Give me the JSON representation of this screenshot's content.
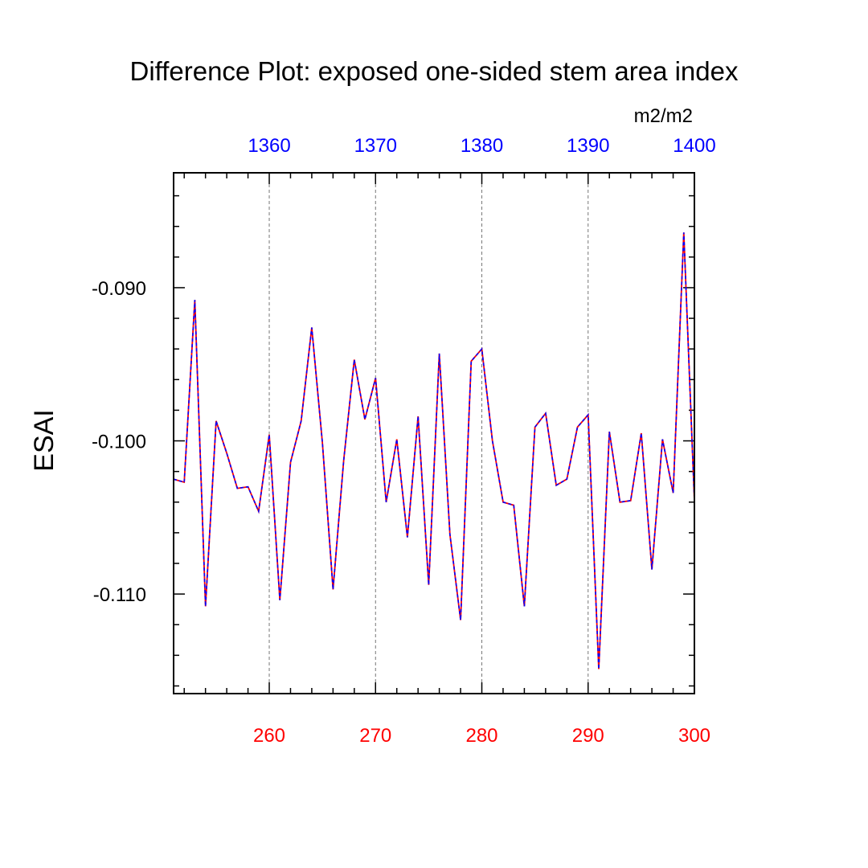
{
  "chart_data": {
    "type": "line",
    "title": "Difference Plot: exposed one-sided stem area index",
    "units": "m2/m2",
    "ylabel": "ESAI",
    "xlabel": "",
    "xlim": [
      251,
      300
    ],
    "ylim": [
      -0.1165,
      -0.0825
    ],
    "top_offset": 1100,
    "grid": "vertical dashed at major x ticks",
    "bottom_ticks": {
      "values": [
        260,
        270,
        280,
        290,
        300
      ],
      "labels": [
        "260",
        "270",
        "280",
        "290",
        "300"
      ],
      "color": "#ff0000"
    },
    "top_ticks": {
      "labels": [
        "1360",
        "1370",
        "1380",
        "1390",
        "1400"
      ],
      "color": "#0000ff"
    },
    "left_ticks": {
      "values": [
        -0.09,
        -0.1,
        -0.11
      ],
      "labels": [
        "-0.090",
        "-0.100",
        "-0.110"
      ]
    },
    "series": [
      {
        "name": "series-red",
        "color": "#ff0000",
        "style": "solid",
        "x": [
          251,
          252,
          253,
          254,
          255,
          256,
          257,
          258,
          259,
          260,
          261,
          262,
          263,
          264,
          265,
          266,
          267,
          268,
          269,
          270,
          271,
          272,
          273,
          274,
          275,
          276,
          277,
          278,
          279,
          280,
          281,
          282,
          283,
          284,
          285,
          286,
          287,
          288,
          289,
          290,
          291,
          292,
          293,
          294,
          295,
          296,
          297,
          298,
          299,
          300
        ],
        "values": [
          -0.1025,
          -0.1027,
          -0.0908,
          -0.1108,
          -0.0987,
          -0.1008,
          -0.1031,
          -0.103,
          -0.1046,
          -0.0996,
          -0.1104,
          -0.1014,
          -0.0987,
          -0.0926,
          -0.1001,
          -0.1097,
          -0.1013,
          -0.0947,
          -0.0986,
          -0.0959,
          -0.104,
          -0.0999,
          -0.1063,
          -0.0984,
          -0.1094,
          -0.0943,
          -0.1061,
          -0.1117,
          -0.0948,
          -0.094,
          -0.1,
          -0.104,
          -0.1042,
          -0.1108,
          -0.0991,
          -0.0982,
          -0.1029,
          -0.1025,
          -0.0991,
          -0.0983,
          -0.1149,
          -0.0994,
          -0.104,
          -0.1039,
          -0.0995,
          -0.1084,
          -0.0999,
          -0.1034,
          -0.0864,
          -0.1039
        ]
      },
      {
        "name": "series-blue",
        "color": "#0000ff",
        "style": "dashed",
        "x": [
          251,
          252,
          253,
          254,
          255,
          256,
          257,
          258,
          259,
          260,
          261,
          262,
          263,
          264,
          265,
          266,
          267,
          268,
          269,
          270,
          271,
          272,
          273,
          274,
          275,
          276,
          277,
          278,
          279,
          280,
          281,
          282,
          283,
          284,
          285,
          286,
          287,
          288,
          289,
          290,
          291,
          292,
          293,
          294,
          295,
          296,
          297,
          298,
          299,
          300
        ],
        "values": [
          -0.1025,
          -0.1027,
          -0.0908,
          -0.1108,
          -0.0987,
          -0.1008,
          -0.1031,
          -0.103,
          -0.1046,
          -0.0996,
          -0.1104,
          -0.1014,
          -0.0987,
          -0.0926,
          -0.1001,
          -0.1097,
          -0.1013,
          -0.0947,
          -0.0986,
          -0.0959,
          -0.104,
          -0.0999,
          -0.1063,
          -0.0984,
          -0.1094,
          -0.0943,
          -0.1061,
          -0.1117,
          -0.0948,
          -0.094,
          -0.1,
          -0.104,
          -0.1042,
          -0.1108,
          -0.0991,
          -0.0982,
          -0.1029,
          -0.1025,
          -0.0991,
          -0.0983,
          -0.1149,
          -0.0994,
          -0.104,
          -0.1039,
          -0.0995,
          -0.1084,
          -0.0999,
          -0.1034,
          -0.0864,
          -0.1039
        ]
      }
    ]
  }
}
